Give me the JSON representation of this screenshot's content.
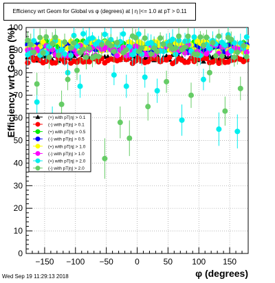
{
  "chart_data": {
    "type": "scatter",
    "title": "Efficiency wrt Geom for Global vs φ (degrees) at | η |<= 1.0 at pT > 0.11",
    "xlabel": "φ (degrees)",
    "ylabel": "Efficiency wrt Geom (%)",
    "xlim": [
      -180,
      180
    ],
    "ylim": [
      0,
      100
    ],
    "x_ticks": [
      "−150",
      "−100",
      "−50",
      "0",
      "50",
      "100",
      "150"
    ],
    "x_tick_values": [
      -150,
      -100,
      -50,
      0,
      50,
      100,
      150
    ],
    "y_ticks": [
      "0",
      "10",
      "20",
      "30",
      "40",
      "50",
      "60",
      "70",
      "80",
      "90",
      "100"
    ],
    "y_tick_values": [
      0,
      10,
      20,
      30,
      40,
      50,
      60,
      70,
      80,
      90,
      100
    ],
    "grid": true,
    "legend_position": "left-middle",
    "bin_width_deg": 5,
    "series": [
      {
        "name": "(+) with pT|η| > 0.1",
        "color": "#000000",
        "marker": "triangle",
        "mean": 86.5,
        "spread": 1.5,
        "err": 0.8
      },
      {
        "name": "(-) with pT|η| > 0.1",
        "color": "#ff0000",
        "marker": "circle",
        "mean": 85.5,
        "spread": 1.5,
        "err": 0.8
      },
      {
        "name": "(+) with pT|η| > 0.5",
        "color": "#00ee00",
        "marker": "circle",
        "mean": 92.0,
        "spread": 2.0,
        "err": 1.2
      },
      {
        "name": "(-) with pT|η| > 0.5",
        "color": "#0000ff",
        "marker": "circle",
        "mean": 90.5,
        "spread": 2.0,
        "err": 1.2
      },
      {
        "name": "(+) with pT|η| > 1.0",
        "color": "#ffff00",
        "marker": "circle",
        "mean": 91.5,
        "spread": 2.5,
        "err": 1.8
      },
      {
        "name": "(-) with pT|η| > 1.0",
        "color": "#ff00ff",
        "marker": "circle",
        "mean": 90.0,
        "spread": 2.5,
        "err": 1.8
      },
      {
        "name": "(+) with pT|η| > 2.0",
        "color": "#00eeee",
        "marker": "circle",
        "mean": 92.5,
        "spread": 5.0,
        "err": 4.0
      },
      {
        "name": "(-) with pT|η| > 2.0",
        "color": "#66cc66",
        "marker": "circle",
        "mean": 91.5,
        "spread": 5.0,
        "err": 4.0
      }
    ],
    "outliers": [
      {
        "series": 6,
        "x": -162.5,
        "y": 67
      },
      {
        "series": 7,
        "x": -162.5,
        "y": 75
      },
      {
        "series": 6,
        "x": -137.5,
        "y": 58
      },
      {
        "series": 7,
        "x": -122.5,
        "y": 66
      },
      {
        "series": 6,
        "x": -112.5,
        "y": 80
      },
      {
        "series": 7,
        "x": -112.5,
        "y": 77
      },
      {
        "series": 7,
        "x": -97.5,
        "y": 81
      },
      {
        "series": 6,
        "x": -92.5,
        "y": 74
      },
      {
        "series": 7,
        "x": -52.5,
        "y": 42
      },
      {
        "series": 6,
        "x": -37.5,
        "y": 79
      },
      {
        "series": 7,
        "x": -27.5,
        "y": 58
      },
      {
        "series": 6,
        "x": -17.5,
        "y": 74
      },
      {
        "series": 7,
        "x": -12.5,
        "y": 51
      },
      {
        "series": 6,
        "x": 12.5,
        "y": 78
      },
      {
        "series": 7,
        "x": 17.5,
        "y": 65
      },
      {
        "series": 6,
        "x": 32.5,
        "y": 72
      },
      {
        "series": 7,
        "x": 47.5,
        "y": 76
      },
      {
        "series": 6,
        "x": 72.5,
        "y": 59
      },
      {
        "series": 7,
        "x": 87.5,
        "y": 70
      },
      {
        "series": 6,
        "x": 107.5,
        "y": 77
      },
      {
        "series": 7,
        "x": 117.5,
        "y": 80
      },
      {
        "series": 6,
        "x": 132.5,
        "y": 55
      },
      {
        "series": 7,
        "x": 142.5,
        "y": 63
      },
      {
        "series": 6,
        "x": 162.5,
        "y": 54
      },
      {
        "series": 7,
        "x": 167.5,
        "y": 73
      }
    ]
  },
  "footer_text": "Wed Sep 19 11:29:13 2018"
}
